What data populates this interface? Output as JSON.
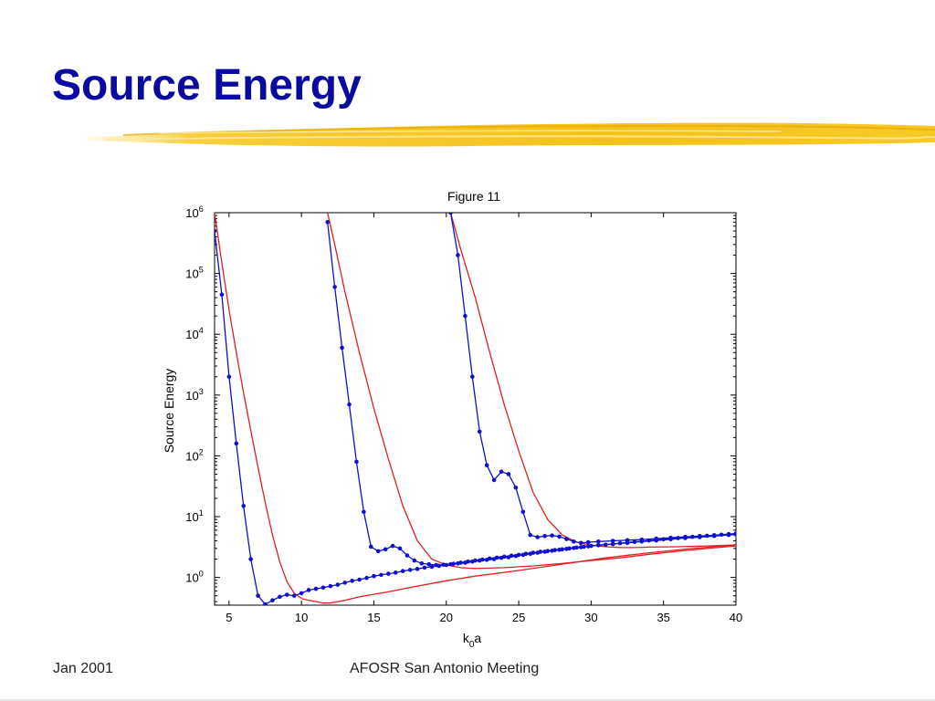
{
  "slide": {
    "title": "Source Energy",
    "footer_left": "Jan 2001",
    "footer_center": "AFOSR San Antonio Meeting",
    "colors": {
      "title": "#0a0aa0",
      "brush": "#f5c518"
    }
  },
  "chart_data": {
    "type": "line",
    "title": "Figure 11",
    "xlabel_main": "k",
    "xlabel_sub": "0",
    "xlabel_tail": "a",
    "ylabel": "Source Energy",
    "xlim": [
      4,
      40
    ],
    "ylim": [
      0.35,
      1000000
    ],
    "yscale": "log",
    "grid": false,
    "xticks": [
      "5",
      "10",
      "15",
      "20",
      "25",
      "30",
      "35",
      "40"
    ],
    "yticks": [
      {
        "base": "10",
        "exp": "0"
      },
      {
        "base": "10",
        "exp": "1"
      },
      {
        "base": "10",
        "exp": "2"
      },
      {
        "base": "10",
        "exp": "3"
      },
      {
        "base": "10",
        "exp": "4"
      },
      {
        "base": "10",
        "exp": "5"
      },
      {
        "base": "10",
        "exp": "6"
      }
    ],
    "series": [
      {
        "color": "#e02020",
        "markers": false,
        "x": [
          4,
          4.5,
          5,
          5.5,
          6,
          6.5,
          7,
          7.5,
          8,
          8.5,
          9,
          9.5,
          10,
          10.5,
          11,
          11.5,
          12,
          13,
          14,
          16,
          18,
          20,
          22,
          25,
          28,
          31,
          34,
          37,
          40
        ],
        "y": [
          1000000,
          150000,
          25000,
          5000,
          1100,
          260,
          65,
          17,
          5,
          1.8,
          0.85,
          0.55,
          0.45,
          0.42,
          0.4,
          0.38,
          0.38,
          0.42,
          0.48,
          0.58,
          0.72,
          0.88,
          1.05,
          1.3,
          1.65,
          2.1,
          2.55,
          3.0,
          3.45
        ]
      },
      {
        "color": "#e02020",
        "markers": false,
        "x": [
          11.8,
          12.3,
          13,
          14,
          15,
          16,
          17,
          18,
          19,
          20,
          21,
          22,
          24,
          26,
          28,
          30,
          32,
          34,
          36,
          38,
          40
        ],
        "y": [
          1000000,
          300000,
          50000,
          5000,
          600,
          90,
          15,
          4,
          2,
          1.6,
          1.45,
          1.4,
          1.45,
          1.55,
          1.7,
          1.9,
          2.1,
          2.4,
          2.7,
          3.0,
          3.3
        ]
      },
      {
        "color": "#e02020",
        "markers": false,
        "x": [
          20.3,
          21,
          22,
          23,
          24,
          25,
          26,
          27,
          28,
          29,
          30,
          31,
          32,
          33,
          34,
          36,
          38,
          40
        ],
        "y": [
          1000000,
          250000,
          40000,
          5000,
          700,
          120,
          25,
          9,
          5,
          3.8,
          3.4,
          3.2,
          3.1,
          3.1,
          3.15,
          3.2,
          3.3,
          3.4
        ]
      },
      {
        "color": "#1010d0",
        "markers": true,
        "x": [
          4,
          4.5,
          5,
          5.5,
          6,
          6.5,
          7,
          7.5,
          8,
          8.5,
          9,
          9.5,
          10,
          10.5,
          11,
          11.5,
          12,
          12.5,
          13,
          13.5,
          14,
          14.5,
          15,
          15.5,
          16,
          16.5,
          17,
          17.5,
          18,
          18.5,
          19,
          19.5,
          20,
          20.5,
          21,
          21.5,
          22,
          22.5,
          23,
          23.5,
          24,
          24.5,
          25,
          25.5,
          26,
          26.5,
          27,
          27.5,
          28,
          28.5,
          29,
          29.5,
          30,
          30.5,
          31,
          31.5,
          32,
          32.5,
          33,
          33.5,
          34,
          34.5,
          35,
          35.5,
          36,
          36.5,
          37,
          37.5,
          38,
          38.5,
          39,
          39.5,
          40
        ],
        "y": [
          500000,
          45000,
          2000,
          160,
          15,
          2,
          0.5,
          0.36,
          0.42,
          0.48,
          0.52,
          0.5,
          0.55,
          0.62,
          0.65,
          0.68,
          0.72,
          0.76,
          0.82,
          0.88,
          0.92,
          0.98,
          1.05,
          1.1,
          1.15,
          1.2,
          1.27,
          1.33,
          1.38,
          1.45,
          1.5,
          1.55,
          1.6,
          1.68,
          1.75,
          1.82,
          1.9,
          1.97,
          2.05,
          2.12,
          2.2,
          2.28,
          2.35,
          2.45,
          2.55,
          2.65,
          2.72,
          2.82,
          2.9,
          3.0,
          3.1,
          3.2,
          3.3,
          3.38,
          3.45,
          3.55,
          3.65,
          3.75,
          3.85,
          3.95,
          4.05,
          4.15,
          4.25,
          4.35,
          4.45,
          4.55,
          4.65,
          4.75,
          4.85,
          4.95,
          5.05,
          5.15,
          5.25
        ]
      },
      {
        "color": "#1010d0",
        "markers": true,
        "x": [
          11.8,
          12.3,
          12.8,
          13.3,
          13.8,
          14.3,
          14.8,
          15.3,
          15.8,
          16.3,
          16.8,
          17.3,
          17.8,
          18.3,
          18.8,
          19.3,
          19.8,
          20.3,
          20.8,
          21.3,
          21.8,
          22.3,
          22.8,
          23.3,
          23.8,
          24.3,
          24.8,
          25.3,
          25.8,
          26.3,
          26.8,
          27.3,
          27.8,
          28.3,
          28.8,
          29.3,
          29.8,
          30.5,
          31.5,
          32.5,
          33.5,
          34.5,
          35.5,
          36.5,
          37.5,
          38.5,
          39.5,
          40
        ],
        "y": [
          700000,
          60000,
          6000,
          700,
          80,
          12,
          3.2,
          2.7,
          2.9,
          3.3,
          3.0,
          2.3,
          1.9,
          1.7,
          1.65,
          1.6,
          1.62,
          1.65,
          1.7,
          1.75,
          1.82,
          1.9,
          1.95,
          2.0,
          2.1,
          2.15,
          2.25,
          2.35,
          2.45,
          2.55,
          2.65,
          2.75,
          2.85,
          2.95,
          3.05,
          3.15,
          3.25,
          3.4,
          3.55,
          3.7,
          3.9,
          4.05,
          4.25,
          4.45,
          4.6,
          4.8,
          5.0,
          5.1
        ]
      },
      {
        "color": "#1010d0",
        "markers": true,
        "x": [
          20.3,
          20.8,
          21.3,
          21.8,
          22.3,
          22.8,
          23.3,
          23.8,
          24.3,
          24.8,
          25.3,
          25.8,
          26.3,
          26.8,
          27.3,
          27.8,
          28.3,
          28.8,
          29.3,
          29.8,
          30.5,
          31.5,
          32.5,
          33.5,
          34.5,
          35.5,
          36.5,
          37.5,
          38.5,
          39.5,
          40
        ],
        "y": [
          1000000,
          200000,
          20000,
          2000,
          250,
          70,
          40,
          55,
          50,
          30,
          12,
          5,
          4.6,
          4.8,
          4.9,
          4.7,
          4.3,
          3.9,
          3.7,
          3.8,
          3.9,
          4.0,
          4.1,
          4.2,
          4.35,
          4.5,
          4.65,
          4.8,
          4.95,
          5.1,
          5.3
        ]
      }
    ]
  }
}
